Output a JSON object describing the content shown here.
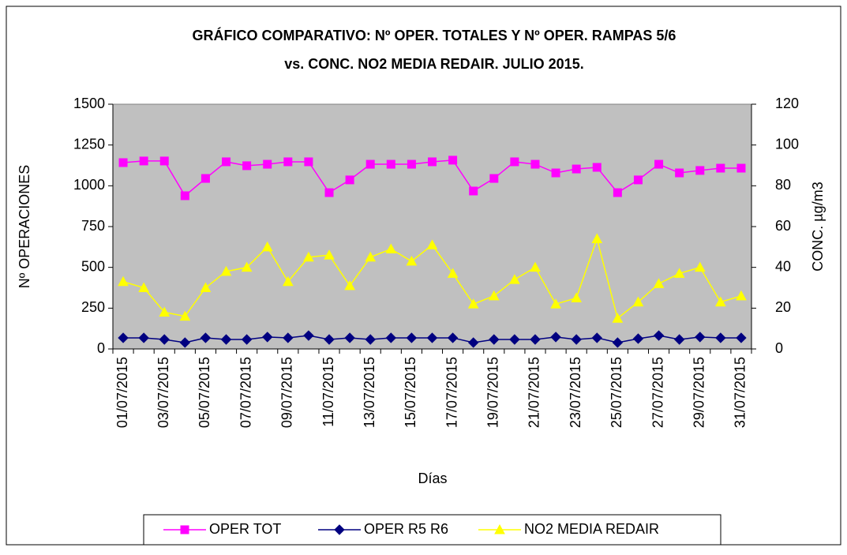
{
  "chart_data": {
    "type": "line",
    "title": [
      "GRÁFICO COMPARATIVO: Nº OPER. TOTALES Y Nº OPER. RAMPAS 5/6",
      "vs. CONC. NO2 MEDIA REDAIR. JULIO 2015."
    ],
    "xlabel": "Días",
    "ylabel": "Nº OPERACIONES",
    "y2label": "CONC. µg/m3",
    "categories": [
      "01/07/2015",
      null,
      "03/07/2015",
      null,
      "05/07/2015",
      null,
      "07/07/2015",
      null,
      "09/07/2015",
      null,
      "11/07/2015",
      null,
      "13/07/2015",
      null,
      "15/07/2015",
      null,
      "17/07/2015",
      null,
      "19/07/2015",
      null,
      "21/07/2015",
      null,
      "23/07/2015",
      null,
      "25/07/2015",
      null,
      "27/07/2015",
      null,
      "29/07/2015",
      null,
      "31/07/2015"
    ],
    "series": [
      {
        "name": "OPER TOT",
        "color": "#ff00ff",
        "marker": "square",
        "axis": "y",
        "values": [
          1142,
          1152,
          1152,
          939,
          1045,
          1147,
          1123,
          1132,
          1147,
          1147,
          958,
          1036,
          1132,
          1132,
          1132,
          1147,
          1157,
          968,
          1045,
          1147,
          1132,
          1079,
          1103,
          1113,
          958,
          1036,
          1132,
          1079,
          1094,
          1108,
          1108
        ]
      },
      {
        "name": "OPER R5 R6",
        "color": "#000080",
        "marker": "diamond",
        "axis": "y",
        "values": [
          68,
          68,
          58,
          39,
          68,
          58,
          58,
          73,
          68,
          82,
          58,
          68,
          58,
          68,
          68,
          68,
          68,
          39,
          58,
          58,
          58,
          73,
          58,
          68,
          39,
          63,
          82,
          58,
          73,
          68,
          68
        ]
      },
      {
        "name": "NO2 MEDIA REDAIR",
        "color": "#ffff00",
        "marker": "triangle",
        "axis": "y2",
        "values": [
          33,
          30,
          18,
          16,
          30,
          38,
          40,
          50,
          33,
          45,
          46,
          31,
          45,
          49,
          43,
          51,
          37,
          22,
          26,
          34,
          40,
          22,
          25,
          54,
          15,
          23,
          32,
          37,
          40,
          23,
          26
        ]
      }
    ],
    "ylim": [
      0,
      1500
    ],
    "yticks": [
      0,
      250,
      500,
      750,
      1000,
      1250,
      1500
    ],
    "y2lim": [
      0,
      120
    ],
    "y2ticks": [
      0,
      20,
      40,
      60,
      80,
      100,
      120
    ],
    "grid": false,
    "plot_background": "#c0c0c0",
    "legend": "bottom"
  }
}
